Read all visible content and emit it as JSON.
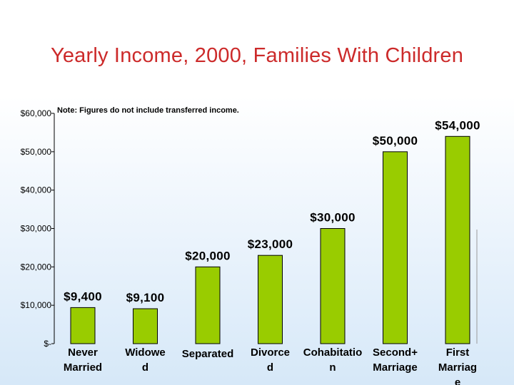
{
  "slide": {
    "title": "Yearly Income, 2000,  Families With Children"
  },
  "chart_data": {
    "type": "bar",
    "title": "Yearly Income, 2000,  Families With Children",
    "annotation": "Note: Figures do not include transferred income.",
    "xlabel": "",
    "ylabel": "",
    "ylim": [
      0,
      60000
    ],
    "y_ticks": [
      0,
      10000,
      20000,
      30000,
      40000,
      50000,
      60000
    ],
    "y_tick_labels": [
      "$-",
      "$10,000",
      "$20,000",
      "$30,000",
      "$40,000",
      "$50,000",
      "$60,000"
    ],
    "categories": [
      [
        "Never",
        "Married"
      ],
      [
        "Widowe",
        "d"
      ],
      [
        "Separated"
      ],
      [
        "Divorce",
        "d"
      ],
      [
        "Cohabitatio",
        "n"
      ],
      [
        "Second+",
        "Marriage"
      ],
      [
        "First",
        "Marriag",
        "e"
      ]
    ],
    "values": [
      9400,
      9100,
      20000,
      23000,
      30000,
      50000,
      54000
    ],
    "data_labels": [
      "$9,400",
      "$9,100",
      "$20,000",
      "$23,000",
      "$30,000",
      "$50,000",
      "$54,000"
    ],
    "bar_color": "#99cc00",
    "grid": false,
    "legend": "none"
  }
}
